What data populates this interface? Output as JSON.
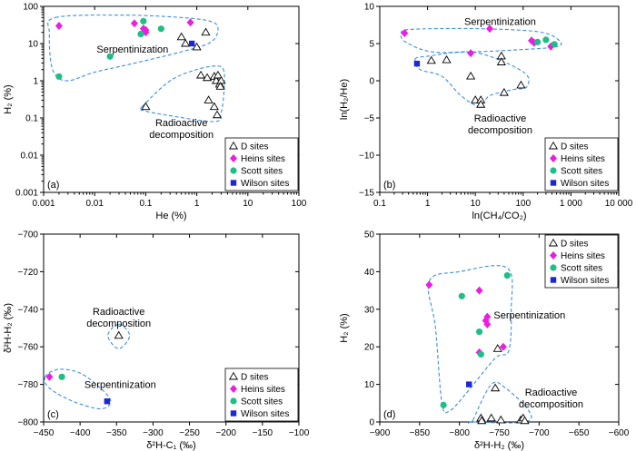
{
  "legend_items": [
    {
      "label": "D sites",
      "marker": "triangle-open",
      "color": "#000000"
    },
    {
      "label": "Heins sites",
      "marker": "diamond",
      "color": "#ea1ee0"
    },
    {
      "label": "Scott sites",
      "marker": "circle",
      "color": "#1fbe86"
    },
    {
      "label": "Wilson sites",
      "marker": "square",
      "color": "#1c27d6"
    }
  ],
  "region_color": "#3d8fdc",
  "chart_data": [
    {
      "type": "scatter",
      "panel": "(a)",
      "xlabel": "He (%)",
      "ylabel": "H₂ (%)",
      "xscale": "log",
      "yscale": "log",
      "xlim": [
        0.001,
        100
      ],
      "ylim": [
        0.001,
        100
      ],
      "x_ticks": [
        "0.001",
        "0.01",
        "0.1",
        "1",
        "10",
        "100"
      ],
      "y_ticks": [
        "0.001",
        "0.01",
        "0.1",
        "1",
        "10",
        "100"
      ],
      "legend_position": "bottom-right",
      "regions": [
        {
          "label": "Serpentinization",
          "outline": [
            [
              0.0017,
              50
            ],
            [
              0.04,
              58
            ],
            [
              0.5,
              50
            ],
            [
              1.8,
              40
            ],
            [
              2.6,
              26
            ],
            [
              1.9,
              11
            ],
            [
              0.5,
              6
            ],
            [
              0.05,
              2.8
            ],
            [
              0.01,
              1.7
            ],
            [
              0.0028,
              1.0
            ],
            [
              0.0015,
              2
            ],
            [
              0.0013,
              18
            ],
            [
              0.0017,
              50
            ]
          ],
          "label_at": [
            0.055,
            5.7
          ]
        },
        {
          "label": "Radioactive\ndecomposition",
          "outline": [
            [
              0.085,
              0.2
            ],
            [
              0.3,
              1.0
            ],
            [
              1.0,
              2.0
            ],
            [
              2.5,
              2.5
            ],
            [
              3.4,
              1.8
            ],
            [
              3.4,
              0.5
            ],
            [
              3.0,
              0.14
            ],
            [
              2.2,
              0.08
            ],
            [
              0.25,
              0.12
            ],
            [
              0.09,
              0.16
            ],
            [
              0.085,
              0.2
            ]
          ],
          "label_at": [
            0.5,
            0.06
          ]
        }
      ],
      "series": [
        {
          "name": "D sites",
          "points": [
            [
              0.1,
              0.2
            ],
            [
              0.5,
              15
            ],
            [
              0.6,
              10
            ],
            [
              1.0,
              8
            ],
            [
              1.5,
              20
            ],
            [
              1.2,
              1.4
            ],
            [
              1.6,
              1.2
            ],
            [
              2.2,
              1.3
            ],
            [
              2.4,
              1.0
            ],
            [
              2.6,
              1.4
            ],
            [
              2.8,
              0.8
            ],
            [
              3.0,
              1.0
            ],
            [
              2.9,
              0.7
            ],
            [
              1.7,
              0.3
            ],
            [
              2.2,
              0.2
            ],
            [
              2.5,
              0.12
            ]
          ]
        },
        {
          "name": "Heins sites",
          "points": [
            [
              0.002,
              30
            ],
            [
              0.06,
              35
            ],
            [
              0.09,
              25
            ],
            [
              0.1,
              20
            ],
            [
              0.1,
              23
            ],
            [
              0.75,
              37
            ]
          ]
        },
        {
          "name": "Scott sites",
          "points": [
            [
              0.002,
              1.3
            ],
            [
              0.02,
              4.5
            ],
            [
              0.09,
              40
            ],
            [
              0.08,
              18
            ],
            [
              0.2,
              25
            ]
          ]
        },
        {
          "name": "Wilson sites",
          "points": [
            [
              0.8,
              10
            ]
          ]
        }
      ]
    },
    {
      "type": "scatter",
      "panel": "(b)",
      "xlabel": "ln(CH₄/CO₂)",
      "ylabel": "ln(H₂/He)",
      "xscale": "log",
      "yscale": "linear",
      "xlim": [
        0.1,
        10000
      ],
      "ylim": [
        -15,
        10
      ],
      "x_ticks": [
        "0.1",
        "1",
        "10",
        "100",
        "1 000",
        "10 000"
      ],
      "y_ticks": [
        "−15",
        "−10",
        "−5",
        "0",
        "5",
        "10"
      ],
      "legend_position": "bottom-right",
      "regions": [
        {
          "label": "Serpentinization",
          "outline": [
            [
              0.28,
              6.3
            ],
            [
              0.45,
              6.9
            ],
            [
              10,
              7.0
            ],
            [
              200,
              6.6
            ],
            [
              550,
              5.5
            ],
            [
              520,
              4.6
            ],
            [
              100,
              4.2
            ],
            [
              10,
              3.9
            ],
            [
              1.2,
              3.9
            ],
            [
              0.35,
              5.2
            ],
            [
              0.28,
              6.3
            ]
          ],
          "label_at": [
            33,
            7.5
          ]
        },
        {
          "label": "Radioactive\ndecomposition",
          "outline": [
            [
              0.55,
              2.9
            ],
            [
              1,
              3.3
            ],
            [
              10,
              3.8
            ],
            [
              100,
              1.2
            ],
            [
              120,
              -0.8
            ],
            [
              60,
              -1.2
            ],
            [
              20,
              -2.0
            ],
            [
              12,
              -3.4
            ],
            [
              5,
              -2.0
            ],
            [
              2,
              0.6
            ],
            [
              0.7,
              1.5
            ],
            [
              0.55,
              2.9
            ]
          ],
          "label_at": [
            33,
            -5.5
          ]
        }
      ],
      "series": [
        {
          "name": "D sites",
          "points": [
            [
              1.2,
              2.7
            ],
            [
              2.5,
              2.8
            ],
            [
              8,
              0.6
            ],
            [
              10,
              -2.6
            ],
            [
              13,
              -2.6
            ],
            [
              13,
              -3.2
            ],
            [
              35,
              3.3
            ],
            [
              35,
              2.5
            ],
            [
              40,
              -1.6
            ],
            [
              90,
              -0.6
            ]
          ]
        },
        {
          "name": "Heins sites",
          "points": [
            [
              0.33,
              6.4
            ],
            [
              8,
              3.7
            ],
            [
              20,
              7.0
            ],
            [
              150,
              5.4
            ],
            [
              170,
              5.1
            ],
            [
              380,
              4.6
            ]
          ]
        },
        {
          "name": "Scott sites",
          "points": [
            [
              200,
              5.2
            ],
            [
              300,
              5.5
            ],
            [
              450,
              4.9
            ]
          ]
        },
        {
          "name": "Wilson sites",
          "points": [
            [
              0.6,
              2.3
            ]
          ]
        }
      ]
    },
    {
      "type": "scatter",
      "panel": "(c)",
      "xlabel": "δ²H-C₁ (‰)",
      "ylabel": "δ²H-H₂ (‰)",
      "xscale": "linear",
      "yscale": "linear",
      "xlim": [
        -450,
        -100
      ],
      "ylim": [
        -800,
        -700
      ],
      "x_ticks": [
        "−450",
        "−400",
        "−350",
        "−300",
        "−250",
        "−200",
        "−150",
        "−100"
      ],
      "y_ticks": [
        "−800",
        "−780",
        "−760",
        "−740",
        "−720",
        "−700"
      ],
      "legend_position": "bottom-right",
      "regions": [
        {
          "label": "Serpentinization",
          "outline": [
            [
              -448,
              -776
            ],
            [
              -430,
              -772
            ],
            [
              -400,
              -774
            ],
            [
              -372,
              -782
            ],
            [
              -358,
              -789
            ],
            [
              -372,
              -793
            ],
            [
              -410,
              -789
            ],
            [
              -442,
              -782
            ],
            [
              -448,
              -776
            ]
          ],
          "label_at": [
            -345,
            -782
          ]
        },
        {
          "label": "Radioactive\ndecomposition",
          "outline": [
            [
              -347,
              -748
            ],
            [
              -332,
              -754
            ],
            [
              -347,
              -761
            ],
            [
              -362,
              -754
            ],
            [
              -347,
              -748
            ]
          ],
          "label_at": [
            -347,
            -743
          ]
        }
      ],
      "series": [
        {
          "name": "D sites",
          "points": [
            [
              -347,
              -754
            ]
          ]
        },
        {
          "name": "Heins sites",
          "points": [
            [
              -442,
              -776
            ]
          ]
        },
        {
          "name": "Scott sites",
          "points": [
            [
              -425,
              -776
            ]
          ]
        },
        {
          "name": "Wilson sites",
          "points": [
            [
              -363,
              -789
            ]
          ]
        }
      ]
    },
    {
      "type": "scatter",
      "panel": "(d)",
      "xlabel": "δ²H-H₂ (‰)",
      "ylabel": "H₂ (%)",
      "xscale": "linear",
      "yscale": "linear",
      "xlim": [
        -900,
        -600
      ],
      "ylim": [
        0,
        50
      ],
      "x_ticks": [
        "−900",
        "−850",
        "−800",
        "−750",
        "−700",
        "−650",
        "−600"
      ],
      "y_ticks": [
        "0",
        "10",
        "20",
        "30",
        "40",
        "50"
      ],
      "legend_position": "top-right",
      "regions": [
        {
          "label": "Serpentinization",
          "outline": [
            [
              -838,
              37.5
            ],
            [
              -800,
              40
            ],
            [
              -740,
              41
            ],
            [
              -735,
              30
            ],
            [
              -738,
              19
            ],
            [
              -755,
              17
            ],
            [
              -790,
              8
            ],
            [
              -812,
              3
            ],
            [
              -822,
              5
            ],
            [
              -830,
              25
            ],
            [
              -838,
              37.5
            ]
          ],
          "label_at": [
            -712,
            27.5
          ]
        },
        {
          "label": "Radioactive\ndecomposition",
          "outline": [
            [
              -783,
              0.5
            ],
            [
              -760,
              10
            ],
            [
              -742,
              9
            ],
            [
              -713,
              3
            ],
            [
              -718,
              0
            ],
            [
              -783,
              0
            ],
            [
              -783,
              0.5
            ]
          ],
          "label_at": [
            -685,
            7
          ]
        }
      ],
      "series": [
        {
          "name": "D sites",
          "points": [
            [
              -773,
              1.0
            ],
            [
              -772,
              0.3
            ],
            [
              -760,
              1.0
            ],
            [
              -755,
              9.0
            ],
            [
              -752,
              19.5
            ],
            [
              -748,
              0.5
            ],
            [
              -723,
              0.5
            ],
            [
              -720,
              1.0
            ],
            [
              -718,
              0.3
            ]
          ]
        },
        {
          "name": "Heins sites",
          "points": [
            [
              -838,
              36.5
            ],
            [
              -775,
              35.0
            ],
            [
              -765,
              28.0
            ],
            [
              -765,
              26.0
            ],
            [
              -767,
              27.0
            ],
            [
              -775,
              18.5
            ],
            [
              -745,
              20.0
            ]
          ]
        },
        {
          "name": "Scott sites",
          "points": [
            [
              -797,
              33.5
            ],
            [
              -775,
              24.0
            ],
            [
              -773,
              18.0
            ],
            [
              -740,
              39.0
            ],
            [
              -820,
              4.5
            ]
          ]
        },
        {
          "name": "Wilson sites",
          "points": [
            [
              -788,
              10.0
            ]
          ]
        }
      ]
    }
  ]
}
